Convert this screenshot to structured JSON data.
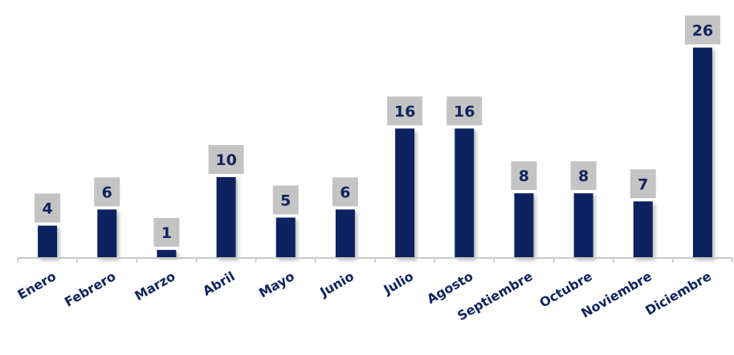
{
  "chart_data": {
    "type": "bar",
    "title": "",
    "xlabel": "",
    "ylabel": "",
    "categories": [
      "Enero",
      "Febrero",
      "Marzo",
      "Abril",
      "Mayo",
      "Junio",
      "Julio",
      "Agosto",
      "Septiembre",
      "Octubre",
      "Noviembre",
      "Diciembre"
    ],
    "values": [
      4,
      6,
      1,
      10,
      5,
      6,
      16,
      16,
      8,
      8,
      7,
      26
    ],
    "ylim": [
      0,
      26
    ],
    "grid": false,
    "legend": "none",
    "data_labels": true
  },
  "colors": {
    "bar": "#0e2460",
    "label_box": "#c4c4c4",
    "label_text": "#0e2460",
    "axis": "#c8c8c8",
    "category_text": "#0e2460"
  }
}
